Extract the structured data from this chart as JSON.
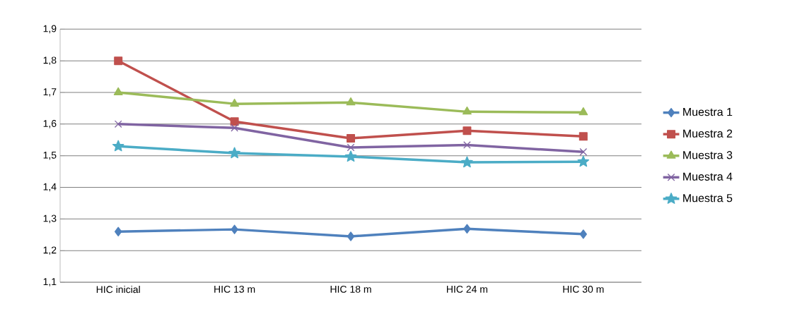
{
  "chart_data": {
    "type": "line",
    "categories": [
      "HIC inicial",
      "HIC 13 m",
      "HIC 18 m",
      "HIC 24 m",
      "HIC 30 m"
    ],
    "series": [
      {
        "name": "Muestra 1",
        "color": "#4f81bd",
        "marker": "diamond",
        "values": [
          1.26,
          1.267,
          1.245,
          1.269,
          1.252
        ]
      },
      {
        "name": "Muestra 2",
        "color": "#c0504d",
        "marker": "square",
        "values": [
          1.8,
          1.608,
          1.555,
          1.579,
          1.561
        ]
      },
      {
        "name": "Muestra 3",
        "color": "#9bbb59",
        "marker": "triangle",
        "values": [
          1.7,
          1.664,
          1.668,
          1.639,
          1.637
        ]
      },
      {
        "name": "Muestra 4",
        "color": "#8064a2",
        "marker": "cross",
        "values": [
          1.6,
          1.588,
          1.526,
          1.534,
          1.512
        ]
      },
      {
        "name": "Muestra 5",
        "color": "#4bacc6",
        "marker": "star",
        "values": [
          1.53,
          1.508,
          1.497,
          1.479,
          1.481
        ]
      }
    ],
    "ylim": [
      1.1,
      1.9
    ],
    "yticks": [
      {
        "value": 1.1,
        "label": "1,1"
      },
      {
        "value": 1.2,
        "label": "1,2"
      },
      {
        "value": 1.3,
        "label": "1,3"
      },
      {
        "value": 1.4,
        "label": "1,4"
      },
      {
        "value": 1.5,
        "label": "1,5"
      },
      {
        "value": 1.6,
        "label": "1,6"
      },
      {
        "value": 1.7,
        "label": "1,7"
      },
      {
        "value": 1.8,
        "label": "1,8"
      },
      {
        "value": 1.9,
        "label": "1,9"
      }
    ],
    "grid": "y",
    "legend": "right",
    "line_style": "solid"
  }
}
